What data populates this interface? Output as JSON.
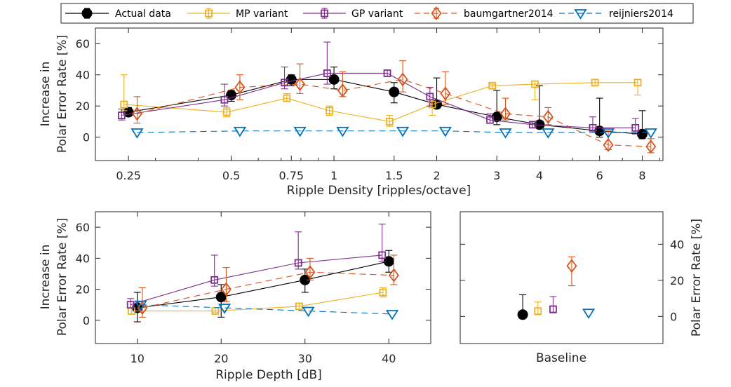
{
  "legend": [
    {
      "name": "Actual data",
      "color": "#000000",
      "marker": "circle",
      "dash": "solid"
    },
    {
      "name": "MP variant",
      "color": "#EDB120",
      "marker": "square",
      "dash": "solid"
    },
    {
      "name": "GP variant",
      "color": "#7E2F8E",
      "marker": "square",
      "dash": "solid"
    },
    {
      "name": "baumgartner2014",
      "color": "#D95319",
      "marker": "diamond",
      "dash": "dashed"
    },
    {
      "name": "reijniers2014",
      "color": "#0072BD",
      "marker": "triangle-down",
      "dash": "dashed"
    }
  ],
  "chart_data": [
    {
      "id": "density",
      "type": "line",
      "xscale": "log",
      "xlabel": "Ripple Density [ripples/octave]",
      "ylabel": [
        "Increase in",
        "Polar Error Rate [%]"
      ],
      "ylim": [
        -15,
        70
      ],
      "xlim": [
        0.2,
        9.2
      ],
      "xticks": [
        0.25,
        0.5,
        0.75,
        1,
        1.5,
        2,
        3,
        4,
        6,
        8
      ],
      "xtick_labels": [
        "0.25",
        "0.5",
        "0.75",
        "1",
        "1.5",
        "2",
        "3",
        "4",
        "6",
        "8"
      ],
      "yticks": [
        0,
        20,
        40,
        60
      ],
      "ytick_labels": [
        "0",
        "20",
        "40",
        "60"
      ],
      "series": [
        {
          "name": "Actual data",
          "offset": 1.0,
          "x": [
            0.25,
            0.5,
            0.75,
            1,
            1.5,
            2,
            3,
            4,
            6,
            8
          ],
          "y": [
            16,
            27,
            37,
            37,
            29,
            21,
            13,
            8,
            4,
            2
          ],
          "err_low": [
            2,
            4,
            4,
            6,
            7,
            2,
            5,
            2,
            4,
            3
          ],
          "err_high": [
            3,
            3,
            3,
            8,
            6,
            17,
            17,
            25,
            21,
            15
          ]
        },
        {
          "name": "MP variant",
          "offset": 0.97,
          "x": [
            0.25,
            0.5,
            0.75,
            1,
            1.5,
            2,
            3,
            4,
            6,
            8
          ],
          "y": [
            21,
            16,
            25,
            17,
            10,
            21,
            33,
            34,
            35,
            35
          ],
          "err_low": [
            4,
            3,
            2,
            3,
            3,
            7,
            2,
            10,
            2,
            8
          ],
          "err_high": [
            19,
            3,
            3,
            3,
            4,
            2,
            1,
            2,
            2,
            2
          ]
        },
        {
          "name": "GP variant",
          "offset": 0.955,
          "x": [
            0.25,
            0.5,
            0.75,
            1,
            1.5,
            2,
            3,
            4,
            6,
            8
          ],
          "y": [
            14,
            24,
            35,
            41,
            41,
            26,
            11,
            8,
            6,
            6
          ],
          "err_low": [
            3,
            4,
            4,
            7,
            2,
            6,
            2,
            2,
            3,
            4
          ],
          "err_high": [
            4,
            10,
            10,
            20,
            2,
            6,
            4,
            2,
            7,
            6
          ]
        },
        {
          "name": "baumgartner2014",
          "offset": 1.06,
          "x": [
            0.25,
            0.5,
            0.75,
            1,
            1.5,
            2,
            3,
            4,
            6,
            8
          ],
          "y": [
            15,
            32,
            34,
            30,
            37,
            28,
            15,
            13,
            -5,
            -6
          ],
          "err_low": [
            6,
            8,
            6,
            4,
            8,
            7,
            4,
            5,
            3,
            4
          ],
          "err_high": [
            11,
            8,
            13,
            12,
            12,
            14,
            10,
            6,
            9,
            5
          ]
        },
        {
          "name": "reijniers2014",
          "offset": 1.06,
          "x": [
            0.25,
            0.5,
            0.75,
            1,
            1.5,
            2,
            3,
            4,
            6,
            8
          ],
          "y": [
            3,
            4,
            4,
            4,
            4,
            4,
            3,
            3,
            3,
            3
          ],
          "err_low": [
            0,
            0,
            0,
            0,
            0,
            0,
            0,
            0,
            0,
            0
          ],
          "err_high": [
            0,
            0,
            0,
            0,
            0,
            0,
            0,
            0,
            0,
            0
          ]
        }
      ]
    },
    {
      "id": "depth",
      "type": "line",
      "xscale": "linear",
      "xlabel": "Ripple Depth [dB]",
      "ylabel": [
        "Increase in",
        "Polar Error Rate [%]"
      ],
      "ylim": [
        -15,
        70
      ],
      "xlim": [
        5,
        45
      ],
      "xticks": [
        10,
        20,
        30,
        40
      ],
      "xtick_labels": [
        "10",
        "20",
        "30",
        "40"
      ],
      "yticks": [
        0,
        20,
        40,
        60
      ],
      "ytick_labels": [
        "0",
        "20",
        "40",
        "60"
      ],
      "series": [
        {
          "name": "Actual data",
          "offset": 0,
          "x": [
            10,
            20,
            30,
            40
          ],
          "y": [
            8,
            15,
            26,
            38
          ],
          "err_low": [
            9,
            13,
            8,
            7
          ],
          "err_high": [
            10,
            8,
            7,
            7
          ]
        },
        {
          "name": "MP variant",
          "offset": -0.7,
          "x": [
            10,
            20,
            30,
            40
          ],
          "y": [
            6,
            6,
            9,
            18
          ],
          "err_low": [
            2,
            1,
            2,
            3
          ],
          "err_high": [
            2,
            2,
            2,
            3
          ]
        },
        {
          "name": "GP variant",
          "offset": -0.8,
          "x": [
            10,
            20,
            30,
            40
          ],
          "y": [
            10,
            26,
            37,
            42
          ],
          "err_low": [
            2,
            4,
            4,
            4
          ],
          "err_high": [
            4,
            16,
            20,
            20
          ]
        },
        {
          "name": "baumgartner2014",
          "offset": 0.6,
          "x": [
            10,
            20,
            30,
            40
          ],
          "y": [
            8,
            20,
            31,
            29
          ],
          "err_low": [
            6,
            8,
            5,
            6
          ],
          "err_high": [
            13,
            14,
            9,
            13
          ]
        },
        {
          "name": "reijniers2014",
          "offset": 0.4,
          "x": [
            10,
            20,
            30,
            40
          ],
          "y": [
            10,
            8,
            6,
            4
          ],
          "err_low": [
            0,
            0,
            0,
            0
          ],
          "err_high": [
            0,
            0,
            0,
            0
          ]
        }
      ]
    },
    {
      "id": "baseline",
      "type": "scatter",
      "xscale": "linear",
      "xlabel": "Baseline",
      "ylabel": [
        "Polar Error Rate [%]"
      ],
      "ylabel_side": "right",
      "ylim": [
        -15,
        58
      ],
      "xlim": [
        0,
        6
      ],
      "xticks": [],
      "yticks": [
        0,
        20,
        40
      ],
      "ytick_labels": [
        "0",
        "20",
        "40"
      ],
      "series": [
        {
          "name": "Actual data",
          "x": [
            1.85
          ],
          "y": [
            1
          ],
          "err_low": [
            0
          ],
          "err_high": [
            11
          ]
        },
        {
          "name": "MP variant",
          "x": [
            2.3
          ],
          "y": [
            3
          ],
          "err_low": [
            2
          ],
          "err_high": [
            5
          ]
        },
        {
          "name": "GP variant",
          "x": [
            2.75
          ],
          "y": [
            4
          ],
          "err_low": [
            2
          ],
          "err_high": [
            7
          ]
        },
        {
          "name": "baumgartner2014",
          "x": [
            3.3
          ],
          "y": [
            28
          ],
          "err_low": [
            11
          ],
          "err_high": [
            5
          ]
        },
        {
          "name": "reijniers2014",
          "x": [
            3.8
          ],
          "y": [
            2
          ],
          "err_low": [
            0
          ],
          "err_high": [
            0
          ]
        }
      ]
    }
  ]
}
